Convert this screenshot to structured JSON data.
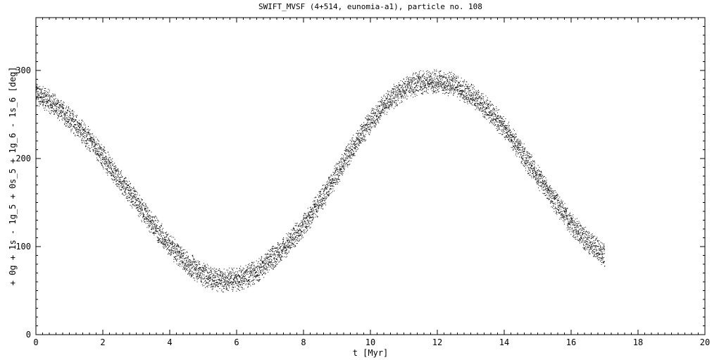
{
  "chart_data": {
    "type": "scatter",
    "title": "SWIFT_MVSF (4+514, eunomia-a1), particle no. 108",
    "xlabel": "t [Myr]",
    "ylabel": "+ 0g + 1s - 1g_5 + 0s_5 + 1g_6 - 1s_6 [deg]",
    "xlim": [
      0,
      20
    ],
    "ylim": [
      0,
      360
    ],
    "x_ticks": [
      0,
      2,
      4,
      6,
      8,
      10,
      12,
      14,
      16,
      18,
      20
    ],
    "x_tick_labels": [
      "0",
      "2",
      "4",
      "6",
      "8",
      "10",
      "12",
      "14",
      "16",
      "18",
      "20"
    ],
    "y_ticks": [
      0,
      100,
      200,
      300
    ],
    "y_tick_labels": [
      "0",
      "100",
      "200",
      "300"
    ],
    "grid": false,
    "legend": "none",
    "marker_color": "#000000",
    "series": [
      {
        "x": [
          0.0,
          0.5,
          1.0,
          1.5,
          2.0,
          2.5,
          3.0,
          3.5,
          4.0,
          4.5,
          5.0,
          5.5,
          6.0,
          6.5,
          7.0,
          7.5,
          8.0,
          8.5,
          9.0,
          9.5,
          10.0,
          10.5,
          11.0,
          11.5,
          12.0,
          12.5,
          13.0,
          13.5,
          14.0,
          14.5,
          15.0,
          15.5,
          16.0,
          16.5,
          17.0
        ],
        "y": [
          275,
          262,
          246,
          226,
          202,
          176,
          150,
          125,
          101,
          82,
          68,
          62,
          63,
          70,
          85,
          102,
          125,
          152,
          183,
          215,
          243,
          265,
          280,
          287,
          288,
          284,
          272,
          257,
          235,
          208,
          180,
          152,
          126,
          106,
          90
        ]
      }
    ]
  }
}
